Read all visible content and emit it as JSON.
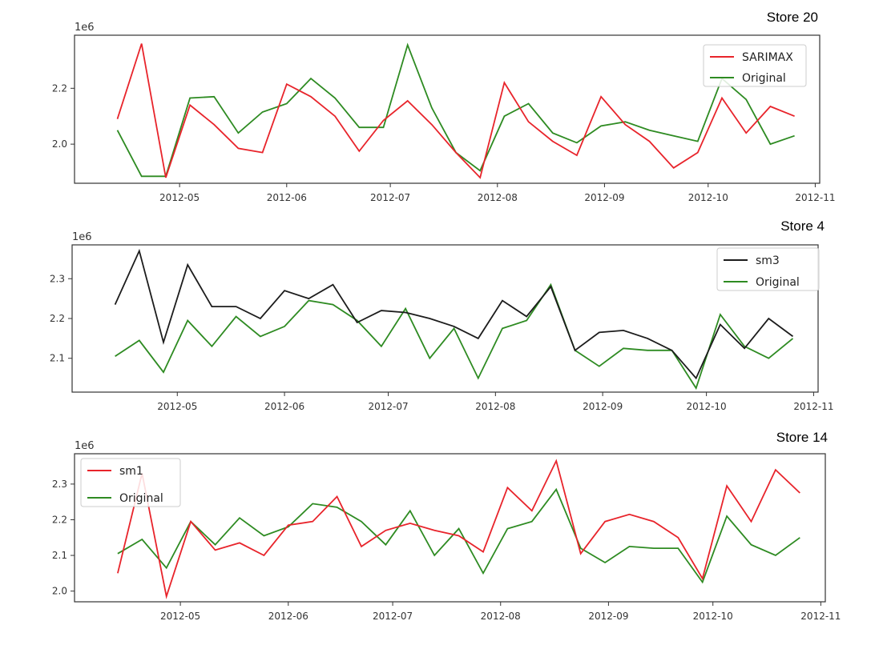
{
  "colors": {
    "sarimax": "#e8242b",
    "sm3": "#1c1c1c",
    "sm1": "#e8242b",
    "original": "#2e8b22",
    "axes": "#333333"
  },
  "chart_data": [
    {
      "type": "line",
      "title": "Store 20",
      "offset_label": "1e6",
      "legend_position": "top-right",
      "x_ticks": [
        "2012-05",
        "2012-06",
        "2012-07",
        "2012-08",
        "2012-09",
        "2012-10",
        "2012-11"
      ],
      "y_ticks": [
        2.0,
        2.2
      ],
      "ylim": [
        1.86,
        2.39
      ],
      "x": [
        "2012-04-13",
        "2012-04-20",
        "2012-04-27",
        "2012-05-04",
        "2012-05-11",
        "2012-05-18",
        "2012-05-25",
        "2012-06-01",
        "2012-06-08",
        "2012-06-15",
        "2012-06-22",
        "2012-06-29",
        "2012-07-06",
        "2012-07-13",
        "2012-07-20",
        "2012-07-27",
        "2012-08-03",
        "2012-08-10",
        "2012-08-17",
        "2012-08-24",
        "2012-08-31",
        "2012-09-07",
        "2012-09-14",
        "2012-09-21",
        "2012-09-28",
        "2012-10-05",
        "2012-10-12",
        "2012-10-19",
        "2012-10-26"
      ],
      "series": [
        {
          "name": "SARIMAX",
          "color_key": "sarimax",
          "values": [
            2.09,
            2.36,
            1.88,
            2.14,
            2.07,
            1.985,
            1.97,
            2.215,
            2.17,
            2.1,
            1.975,
            2.085,
            2.155,
            2.07,
            1.97,
            1.88,
            2.22,
            2.08,
            2.01,
            1.96,
            2.17,
            2.07,
            2.01,
            1.915,
            1.97,
            2.165,
            2.04,
            2.135,
            2.1
          ]
        },
        {
          "name": "Original",
          "color_key": "original",
          "values": [
            2.05,
            1.885,
            1.885,
            2.165,
            2.17,
            2.04,
            2.115,
            2.145,
            2.235,
            2.165,
            2.06,
            2.06,
            2.355,
            2.13,
            1.97,
            1.905,
            2.1,
            2.145,
            2.04,
            2.005,
            2.065,
            2.08,
            2.05,
            2.03,
            2.01,
            2.235,
            2.16,
            2.0,
            2.03
          ]
        }
      ]
    },
    {
      "type": "line",
      "title": "Store 4",
      "offset_label": "1e6",
      "legend_position": "top-right",
      "x_ticks": [
        "2012-05",
        "2012-06",
        "2012-07",
        "2012-08",
        "2012-09",
        "2012-10",
        "2012-11"
      ],
      "y_ticks": [
        2.1,
        2.2,
        2.3
      ],
      "ylim": [
        2.015,
        2.385
      ],
      "x": [
        "2012-04-13",
        "2012-04-20",
        "2012-04-27",
        "2012-05-04",
        "2012-05-11",
        "2012-05-18",
        "2012-05-25",
        "2012-06-01",
        "2012-06-08",
        "2012-06-15",
        "2012-06-22",
        "2012-06-29",
        "2012-07-06",
        "2012-07-13",
        "2012-07-20",
        "2012-07-27",
        "2012-08-03",
        "2012-08-10",
        "2012-08-17",
        "2012-08-24",
        "2012-08-31",
        "2012-09-07",
        "2012-09-14",
        "2012-09-21",
        "2012-09-28",
        "2012-10-05",
        "2012-10-12",
        "2012-10-19",
        "2012-10-26"
      ],
      "series": [
        {
          "name": "sm3",
          "color_key": "sm3",
          "values": [
            2.235,
            2.37,
            2.14,
            2.335,
            2.23,
            2.23,
            2.2,
            2.27,
            2.25,
            2.285,
            2.19,
            2.22,
            2.215,
            2.2,
            2.18,
            2.15,
            2.245,
            2.205,
            2.28,
            2.12,
            2.165,
            2.17,
            2.15,
            2.12,
            2.05,
            2.185,
            2.125,
            2.2,
            2.155
          ]
        },
        {
          "name": "Original",
          "color_key": "original",
          "values": [
            2.105,
            2.145,
            2.065,
            2.195,
            2.13,
            2.205,
            2.155,
            2.18,
            2.245,
            2.235,
            2.195,
            2.13,
            2.225,
            2.1,
            2.175,
            2.05,
            2.175,
            2.195,
            2.285,
            2.12,
            2.08,
            2.125,
            2.12,
            2.12,
            2.025,
            2.21,
            2.13,
            2.1,
            2.15
          ]
        }
      ]
    },
    {
      "type": "line",
      "title": "Store 14",
      "offset_label": "1e6",
      "legend_position": "top-left",
      "x_ticks": [
        "2012-05",
        "2012-06",
        "2012-07",
        "2012-08",
        "2012-09",
        "2012-10",
        "2012-11"
      ],
      "y_ticks": [
        2.0,
        2.1,
        2.2,
        2.3
      ],
      "ylim": [
        1.97,
        2.385
      ],
      "x": [
        "2012-04-13",
        "2012-04-20",
        "2012-04-27",
        "2012-05-04",
        "2012-05-11",
        "2012-05-18",
        "2012-05-25",
        "2012-06-01",
        "2012-06-08",
        "2012-06-15",
        "2012-06-22",
        "2012-06-29",
        "2012-07-06",
        "2012-07-13",
        "2012-07-20",
        "2012-07-27",
        "2012-08-03",
        "2012-08-10",
        "2012-08-17",
        "2012-08-24",
        "2012-08-31",
        "2012-09-07",
        "2012-09-14",
        "2012-09-21",
        "2012-09-28",
        "2012-10-05",
        "2012-10-12",
        "2012-10-19",
        "2012-10-26"
      ],
      "series": [
        {
          "name": "sm1",
          "color_key": "sm1",
          "values": [
            2.05,
            2.33,
            1.985,
            2.195,
            2.115,
            2.135,
            2.1,
            2.185,
            2.195,
            2.265,
            2.125,
            2.17,
            2.19,
            2.17,
            2.155,
            2.11,
            2.29,
            2.225,
            2.365,
            2.105,
            2.195,
            2.215,
            2.195,
            2.15,
            2.035,
            2.295,
            2.195,
            2.34,
            2.275
          ]
        },
        {
          "name": "Original",
          "color_key": "original",
          "values": [
            2.105,
            2.145,
            2.065,
            2.195,
            2.13,
            2.205,
            2.155,
            2.18,
            2.245,
            2.235,
            2.195,
            2.13,
            2.225,
            2.1,
            2.175,
            2.05,
            2.175,
            2.195,
            2.285,
            2.12,
            2.08,
            2.125,
            2.12,
            2.12,
            2.025,
            2.21,
            2.13,
            2.1,
            2.15
          ]
        }
      ]
    }
  ]
}
